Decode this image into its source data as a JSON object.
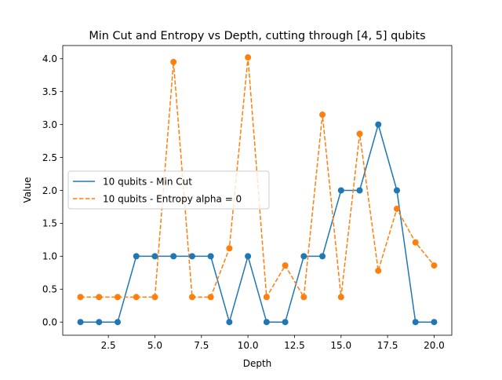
{
  "chart_data": {
    "type": "line",
    "title": "Min Cut and Entropy vs Depth, cutting through [4, 5] qubits",
    "xlabel": "Depth",
    "ylabel": "Value",
    "xlim": [
      0.05,
      20.95
    ],
    "ylim": [
      -0.2,
      4.2
    ],
    "xticks": [
      2.5,
      5.0,
      7.5,
      10.0,
      12.5,
      15.0,
      17.5,
      20.0
    ],
    "xtick_labels": [
      "2.5",
      "5.0",
      "7.5",
      "10.0",
      "12.5",
      "15.0",
      "17.5",
      "20.0"
    ],
    "yticks": [
      0.0,
      0.5,
      1.0,
      1.5,
      2.0,
      2.5,
      3.0,
      3.5,
      4.0
    ],
    "ytick_labels": [
      "0.0",
      "0.5",
      "1.0",
      "1.5",
      "2.0",
      "2.5",
      "3.0",
      "3.5",
      "4.0"
    ],
    "grid": false,
    "legend_position": "center-left",
    "x": [
      1,
      2,
      3,
      4,
      5,
      6,
      7,
      8,
      9,
      10,
      11,
      12,
      13,
      14,
      15,
      16,
      17,
      18,
      19,
      20
    ],
    "series": [
      {
        "name": "10 qubits - Min Cut",
        "color": "#1f77b4",
        "linestyle": "solid",
        "marker": "circle",
        "values": [
          0,
          0,
          0,
          1,
          1,
          1,
          1,
          1,
          0,
          1,
          0,
          0,
          1,
          1,
          2,
          2,
          3,
          2,
          0,
          0
        ]
      },
      {
        "name": "10 qubits - Entropy alpha = 0",
        "color": "#ff7f0e",
        "linestyle": "dashed",
        "marker": "circle",
        "values": [
          0.38,
          0.38,
          0.38,
          0.38,
          0.38,
          3.95,
          0.38,
          0.38,
          1.12,
          4.02,
          0.38,
          0.86,
          0.38,
          3.15,
          0.38,
          2.86,
          0.78,
          1.72,
          1.21,
          0.86
        ]
      }
    ]
  }
}
